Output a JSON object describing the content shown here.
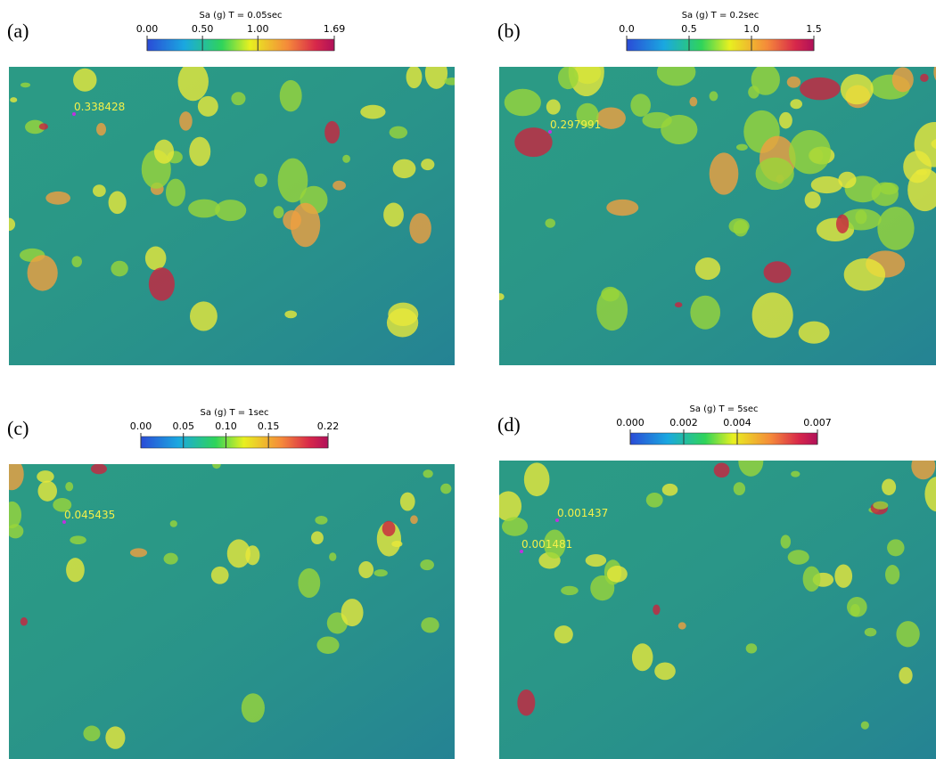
{
  "chart_data": [
    {
      "type": "heatmap",
      "label": "(a)",
      "title": "Sa (g) T = 0.05sec",
      "clim": [
        0,
        1.69
      ],
      "cticks": [
        {
          "value": 0,
          "label": "0.00"
        },
        {
          "value": 0.5,
          "label": "0.50"
        },
        {
          "value": 1,
          "label": "1.00"
        },
        1.69
      ],
      "annotations": [
        "0.338428"
      ]
    },
    {
      "type": "heatmap",
      "label": "(b)",
      "title": "Sa (g) T = 0.2sec",
      "clim": [
        0,
        1.5
      ],
      "cticks": [
        {
          "value": 0,
          "label": "0.0"
        },
        0.5,
        {
          "value": 1,
          "label": "1.0"
        },
        1.5
      ],
      "annotations": [
        "0.297991"
      ]
    },
    {
      "type": "heatmap",
      "label": "(c)",
      "title": "Sa (g) T = 1sec",
      "clim": [
        0,
        0.22
      ],
      "cticks": [
        {
          "value": 0,
          "label": "0.00"
        },
        0.05,
        {
          "value": 0.1,
          "label": "0.10"
        },
        0.15,
        0.22
      ],
      "annotations": [
        "0.045435"
      ]
    },
    {
      "type": "heatmap",
      "label": "(d)",
      "title": "Sa (g) T = 5sec",
      "clim": [
        0,
        0.007
      ],
      "cticks": [
        {
          "value": 0,
          "label": "0.000"
        },
        0.002,
        0.004,
        0.007
      ],
      "annotations": [
        "0.001437",
        "0.001481"
      ]
    }
  ]
}
